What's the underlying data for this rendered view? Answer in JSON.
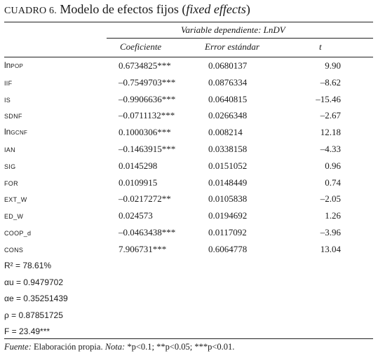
{
  "table": {
    "label": "CUADRO 6.",
    "title": "Modelo de efectos fijos (",
    "title_italic": "fixed effects",
    "title_end": ")",
    "dependent_variable": "Variable dependiente: LnDV",
    "columns": [
      "Coeficiente",
      "Error estándar",
      "t"
    ],
    "rows": [
      {
        "var": "ln",
        "sub": "POP",
        "coef": "0.6734825***",
        "se": "0.0680137",
        "t": "9.90"
      },
      {
        "var": "IIF",
        "sub": "",
        "coef": "–0.7549703***",
        "se": "0.0876334",
        "t": "–8.62"
      },
      {
        "var": "IS",
        "sub": "",
        "coef": "–0.9906636***",
        "se": "0.0640815",
        "t": "–15.46"
      },
      {
        "var": "SDNF",
        "sub": "",
        "coef": "–0.0711132***",
        "se": "0.0266348",
        "t": "–2.67"
      },
      {
        "var": "ln",
        "sub": "GCNF",
        "coef": "0.1000306***",
        "se": "0.008214",
        "t": "12.18"
      },
      {
        "var": "IAN",
        "sub": "",
        "coef": "–0.1463915***",
        "se": "0.0338158",
        "t": "–4.33"
      },
      {
        "var": "SIG",
        "sub": "",
        "coef": "0.0145298",
        "se": "0.0151052",
        "t": "0.96"
      },
      {
        "var": "FOR",
        "sub": "",
        "coef": "0.0109915",
        "se": "0.0148449",
        "t": "0.74"
      },
      {
        "var": "EXT_W",
        "sub": "",
        "coef": "–0.0217272**",
        "se": "0.0105838",
        "t": "–2.05"
      },
      {
        "var": "ED_W",
        "sub": "",
        "coef": "0.024573",
        "se": "0.0194692",
        "t": "1.26"
      },
      {
        "var": "COOP_d",
        "sub": "",
        "coef": "–0.0463438***",
        "se": "0.0117092",
        "t": "–3.96"
      },
      {
        "var": "CONS",
        "sub": "",
        "coef": "7.906731***",
        "se": "0.6064778",
        "t": "13.04"
      }
    ],
    "stats": [
      "R² = 78.61%",
      "αu = 0.9479702",
      "αe = 0.35251439",
      "ρ = 0.87851725",
      "F = 23.49***"
    ],
    "note_source_label": "Fuente:",
    "note_source": " Elaboración propia. ",
    "note_label": "Nota:",
    "note_text": " *p<0.1; **p<0.05; ***p<0.01."
  }
}
